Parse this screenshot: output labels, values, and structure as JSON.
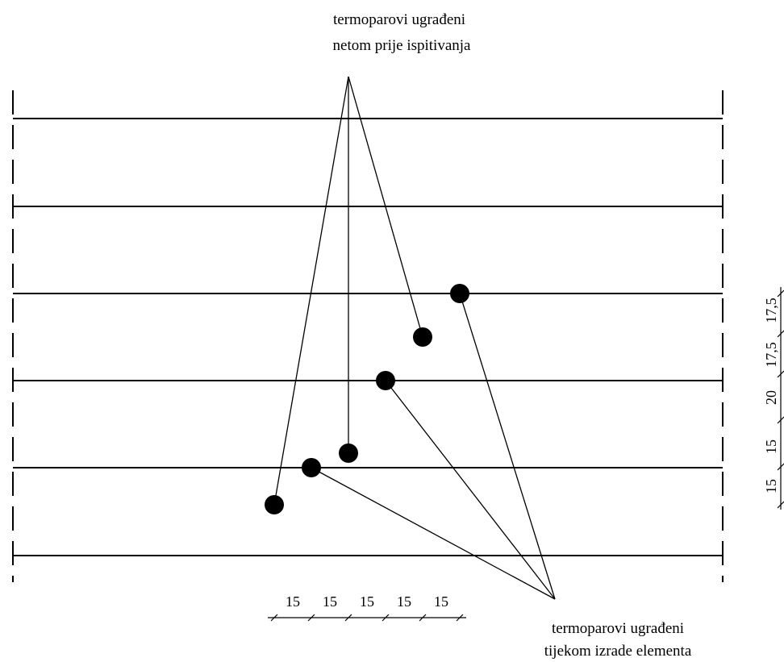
{
  "labels": {
    "top_line1": "termoparovi ugrađeni",
    "top_line2": "netom prije ispitivanja",
    "bottom_line1": "termoparovi ugrađeni",
    "bottom_line2": "tijekom izrade elementa"
  },
  "dimensions": {
    "horizontal": [
      "15",
      "15",
      "15",
      "15",
      "15"
    ],
    "vertical_bottom_to_top": [
      "15",
      "15",
      "20",
      "17,5",
      "17,5"
    ]
  },
  "thermocouples": {
    "installed_before_test": 3,
    "installed_during_fabrication": 3
  }
}
